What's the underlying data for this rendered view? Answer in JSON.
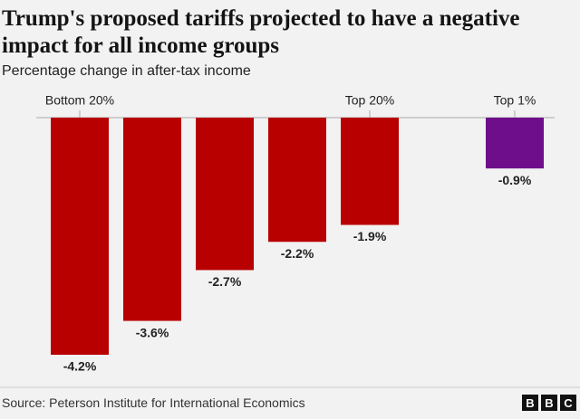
{
  "chart_data": {
    "type": "bar",
    "title": "Trump's proposed tariffs projected to have a negative impact for all income groups",
    "subtitle": "Percentage change in after-tax income",
    "categories": [
      "Bottom 20%",
      null,
      null,
      null,
      "Top 20%",
      "Top 1%"
    ],
    "values": [
      -4.2,
      -3.6,
      -2.7,
      -2.2,
      -1.9,
      -0.9
    ],
    "value_labels": [
      "-4.2%",
      "-3.6%",
      "-2.7%",
      "-2.2%",
      "-1.9%",
      "-0.9%"
    ],
    "colors": [
      "#b80000",
      "#b80000",
      "#b80000",
      "#b80000",
      "#b80000",
      "#6e0e8a"
    ],
    "source": "Source: Peterson Institute for International Economics",
    "logo": [
      "B",
      "B",
      "C"
    ]
  }
}
